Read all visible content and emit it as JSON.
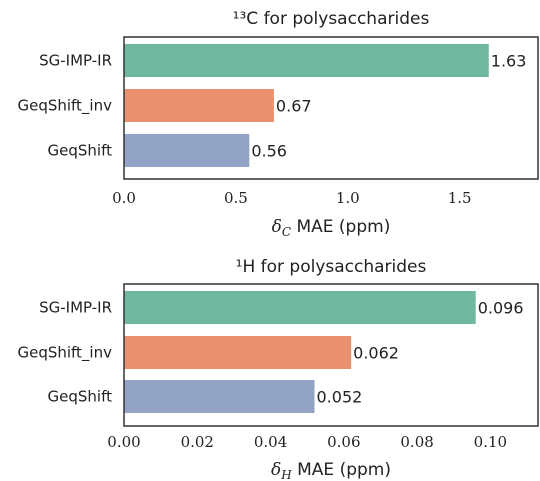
{
  "chart_data": [
    {
      "type": "bar",
      "orientation": "horizontal",
      "title": "¹³C for polysaccharides",
      "categories": [
        "SG-IMP-IR",
        "GeqShift_inv",
        "GeqShift"
      ],
      "values": [
        1.63,
        0.67,
        0.56
      ],
      "value_labels": [
        "1.63",
        "0.67",
        "0.56"
      ],
      "colors": [
        "#70b79f",
        "#e8906f",
        "#93a3c6"
      ],
      "xlabel": "δC MAE (ppm)",
      "xlabel_symbol": "δ",
      "xlabel_sub": "C",
      "xlabel_rest": " MAE (ppm)",
      "xlim": [
        0,
        1.85
      ],
      "xticks": [
        "0.0",
        "0.5",
        "1.0",
        "1.5"
      ],
      "xtick_values": [
        0,
        0.5,
        1.0,
        1.5
      ],
      "grid": false
    },
    {
      "type": "bar",
      "orientation": "horizontal",
      "title": "¹H for polysaccharides",
      "categories": [
        "SG-IMP-IR",
        "GeqShift_inv",
        "GeqShift"
      ],
      "values": [
        0.096,
        0.062,
        0.052
      ],
      "value_labels": [
        "0.096",
        "0.062",
        "0.052"
      ],
      "colors": [
        "#70b79f",
        "#e8906f",
        "#93a3c6"
      ],
      "xlabel": "δH MAE (ppm)",
      "xlabel_symbol": "δ",
      "xlabel_sub": "H",
      "xlabel_rest": " MAE (ppm)",
      "xlim": [
        0,
        0.113
      ],
      "xticks": [
        "0.00",
        "0.02",
        "0.04",
        "0.06",
        "0.08",
        "0.10"
      ],
      "xtick_values": [
        0,
        0.02,
        0.04,
        0.06,
        0.08,
        0.1
      ],
      "grid": false
    }
  ]
}
